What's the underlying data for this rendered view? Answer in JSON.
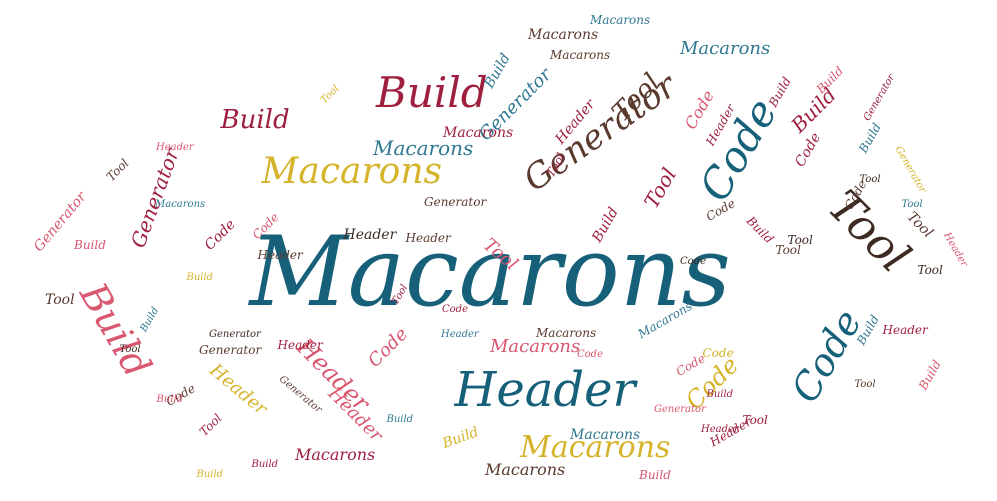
{
  "palette": {
    "teal": "#17607a",
    "blue": "#2f7891",
    "gold": "#d5b42b",
    "crimson": "#9e1f3f",
    "pink": "#d9576f",
    "brown": "#5a3a2e",
    "dark": "#3d2a22"
  },
  "words": [
    {
      "text": "Macarons",
      "color": "teal",
      "size": "xl"
    },
    {
      "text": "Header",
      "color": "teal",
      "size": "lg"
    },
    {
      "text": "Macarons",
      "color": "gold",
      "size": "md"
    },
    {
      "text": "Build",
      "color": "crimson",
      "size": "md"
    },
    {
      "text": "Generator",
      "color": "brown",
      "size": "md"
    },
    {
      "text": "Tool",
      "color": "brown",
      "size": "md"
    },
    {
      "text": "Code",
      "color": "teal",
      "size": "md"
    },
    {
      "text": "Tool",
      "color": "dark",
      "size": "md"
    },
    {
      "text": "Build",
      "color": "pink",
      "size": "md"
    },
    {
      "text": "Macarons",
      "color": "gold",
      "size": "md"
    },
    {
      "text": "Code",
      "color": "teal",
      "size": "md"
    },
    {
      "text": "Build",
      "color": "crimson",
      "size": "sm"
    },
    {
      "text": "Macarons",
      "color": "blue",
      "size": "sm"
    },
    {
      "text": "Tool",
      "color": "crimson",
      "size": "sm"
    },
    {
      "text": "Header",
      "color": "pink",
      "size": "sm"
    },
    {
      "text": "Header",
      "color": "gold",
      "size": "sm"
    },
    {
      "text": "Code",
      "color": "gold",
      "size": "sm"
    },
    {
      "text": "Code",
      "color": "pink",
      "size": "sm"
    },
    {
      "text": "Macarons",
      "color": "pink",
      "size": "sm"
    },
    {
      "text": "Generator",
      "color": "crimson",
      "size": "sm"
    },
    {
      "text": "Build",
      "color": "crimson",
      "size": "sm"
    },
    {
      "text": "Macarons",
      "color": "blue",
      "size": "sm"
    },
    {
      "text": "Tool",
      "color": "pink",
      "size": "sm"
    },
    {
      "text": "Generator",
      "color": "blue",
      "size": "sm"
    },
    {
      "text": "Tool",
      "color": "brown",
      "size": "sm"
    },
    {
      "text": "Macarons",
      "color": "brown",
      "size": "sm"
    },
    {
      "text": "Macarons",
      "color": "blue",
      "size": "sm"
    },
    {
      "text": "Macarons",
      "color": "crimson",
      "size": "xs"
    },
    {
      "text": "Macarons",
      "color": "brown",
      "size": "xs"
    },
    {
      "text": "Header",
      "color": "brown",
      "size": "xs"
    },
    {
      "text": "Header",
      "color": "pink",
      "size": "sm"
    },
    {
      "text": "Header",
      "color": "crimson",
      "size": "xs"
    },
    {
      "text": "Build",
      "color": "gold",
      "size": "xs"
    },
    {
      "text": "Macarons",
      "color": "crimson",
      "size": "sm"
    },
    {
      "text": "Macarons",
      "color": "brown",
      "size": "xs"
    },
    {
      "text": "Macarons",
      "color": "blue",
      "size": "xs"
    },
    {
      "text": "Macarons",
      "color": "brown",
      "size": "xs"
    },
    {
      "text": "Code",
      "color": "pink",
      "size": "xs"
    },
    {
      "text": "Header",
      "color": "crimson",
      "size": "xs"
    },
    {
      "text": "Code",
      "color": "crimson",
      "size": "xs"
    },
    {
      "text": "Tool",
      "color": "crimson",
      "size": "xs"
    },
    {
      "text": "Build",
      "color": "crimson",
      "size": "xs"
    },
    {
      "text": "Build",
      "color": "pink",
      "size": "xs"
    },
    {
      "text": "Build",
      "color": "blue",
      "size": "xs"
    },
    {
      "text": "Macarons",
      "color": "blue",
      "size": "xs"
    },
    {
      "text": "Build",
      "color": "blue",
      "size": "xs"
    },
    {
      "text": "Code",
      "color": "brown",
      "size": "xs"
    },
    {
      "text": "Header",
      "color": "crimson",
      "size": "xs"
    },
    {
      "text": "Tool",
      "color": "gold",
      "size": "xs"
    },
    {
      "text": "Code",
      "color": "crimson",
      "size": "xs"
    },
    {
      "text": "Tool",
      "color": "brown",
      "size": "xs"
    },
    {
      "text": "Generator",
      "color": "pink",
      "size": "xs"
    },
    {
      "text": "Header",
      "color": "pink",
      "size": "xs"
    },
    {
      "text": "Build",
      "color": "crimson",
      "size": "xs"
    },
    {
      "text": "Code",
      "color": "pink",
      "size": "xs"
    },
    {
      "text": "Build",
      "color": "crimson",
      "size": "xs"
    },
    {
      "text": "Build",
      "color": "blue",
      "size": "xs"
    },
    {
      "text": "Macarons",
      "color": "blue",
      "size": "xs"
    },
    {
      "text": "Tool",
      "color": "crimson",
      "size": "xs"
    },
    {
      "text": "Code",
      "color": "brown",
      "size": "xs"
    },
    {
      "text": "Generator",
      "color": "gold",
      "size": "xs"
    },
    {
      "text": "Code",
      "color": "brown",
      "size": "xs"
    },
    {
      "text": "Tool",
      "color": "dark",
      "size": "xs"
    },
    {
      "text": "Tool",
      "color": "brown",
      "size": "xs"
    },
    {
      "text": "Generator",
      "color": "brown",
      "size": "xs"
    },
    {
      "text": "Code",
      "color": "pink",
      "size": "xs"
    },
    {
      "text": "Tool",
      "color": "dark",
      "size": "xs"
    },
    {
      "text": "Code",
      "color": "pink",
      "size": "xs"
    },
    {
      "text": "Build",
      "color": "pink",
      "size": "xs"
    },
    {
      "text": "Header",
      "color": "crimson",
      "size": "xs"
    },
    {
      "text": "Build",
      "color": "pink",
      "size": "xs"
    },
    {
      "text": "Generator",
      "color": "brown",
      "size": "xs"
    },
    {
      "text": "Tool",
      "color": "brown",
      "size": "xs"
    },
    {
      "text": "Generator",
      "color": "crimson",
      "size": "xs"
    },
    {
      "text": "Build",
      "color": "gold",
      "size": "xs"
    },
    {
      "text": "Build",
      "color": "blue",
      "size": "xs"
    },
    {
      "text": "Tool",
      "color": "crimson",
      "size": "xs"
    },
    {
      "text": "Build",
      "color": "crimson",
      "size": "xs"
    },
    {
      "text": "Tool",
      "color": "dark",
      "size": "xs"
    },
    {
      "text": "Header",
      "color": "brown",
      "size": "xs"
    },
    {
      "text": "Generator",
      "color": "pink",
      "size": "xs"
    },
    {
      "text": "Code",
      "color": "crimson",
      "size": "xs"
    },
    {
      "text": "Build",
      "color": "crimson",
      "size": "xs"
    },
    {
      "text": "Header",
      "color": "dark",
      "size": "xs"
    },
    {
      "text": "Generator",
      "color": "dark",
      "size": "xs"
    },
    {
      "text": "Build",
      "color": "pink",
      "size": "xs"
    },
    {
      "text": "Code",
      "color": "dark",
      "size": "xs"
    },
    {
      "text": "Header",
      "color": "pink",
      "size": "xs"
    },
    {
      "text": "Tool",
      "color": "brown",
      "size": "xs"
    },
    {
      "text": "Header",
      "color": "crimson",
      "size": "xs"
    },
    {
      "text": "Tool",
      "color": "blue",
      "size": "xs"
    },
    {
      "text": "Build",
      "color": "blue",
      "size": "xs"
    },
    {
      "text": "Code",
      "color": "gold",
      "size": "xs"
    },
    {
      "text": "Generator",
      "color": "brown",
      "size": "xs"
    },
    {
      "text": "Header",
      "color": "crimson",
      "size": "xs"
    },
    {
      "text": "Tool",
      "color": "dark",
      "size": "xs"
    },
    {
      "text": "Header",
      "color": "blue",
      "size": "xs"
    },
    {
      "text": "Build",
      "color": "pink",
      "size": "xs"
    },
    {
      "text": "Build",
      "color": "gold",
      "size": "xs"
    },
    {
      "text": "Tool",
      "color": "crimson",
      "size": "xs"
    }
  ]
}
